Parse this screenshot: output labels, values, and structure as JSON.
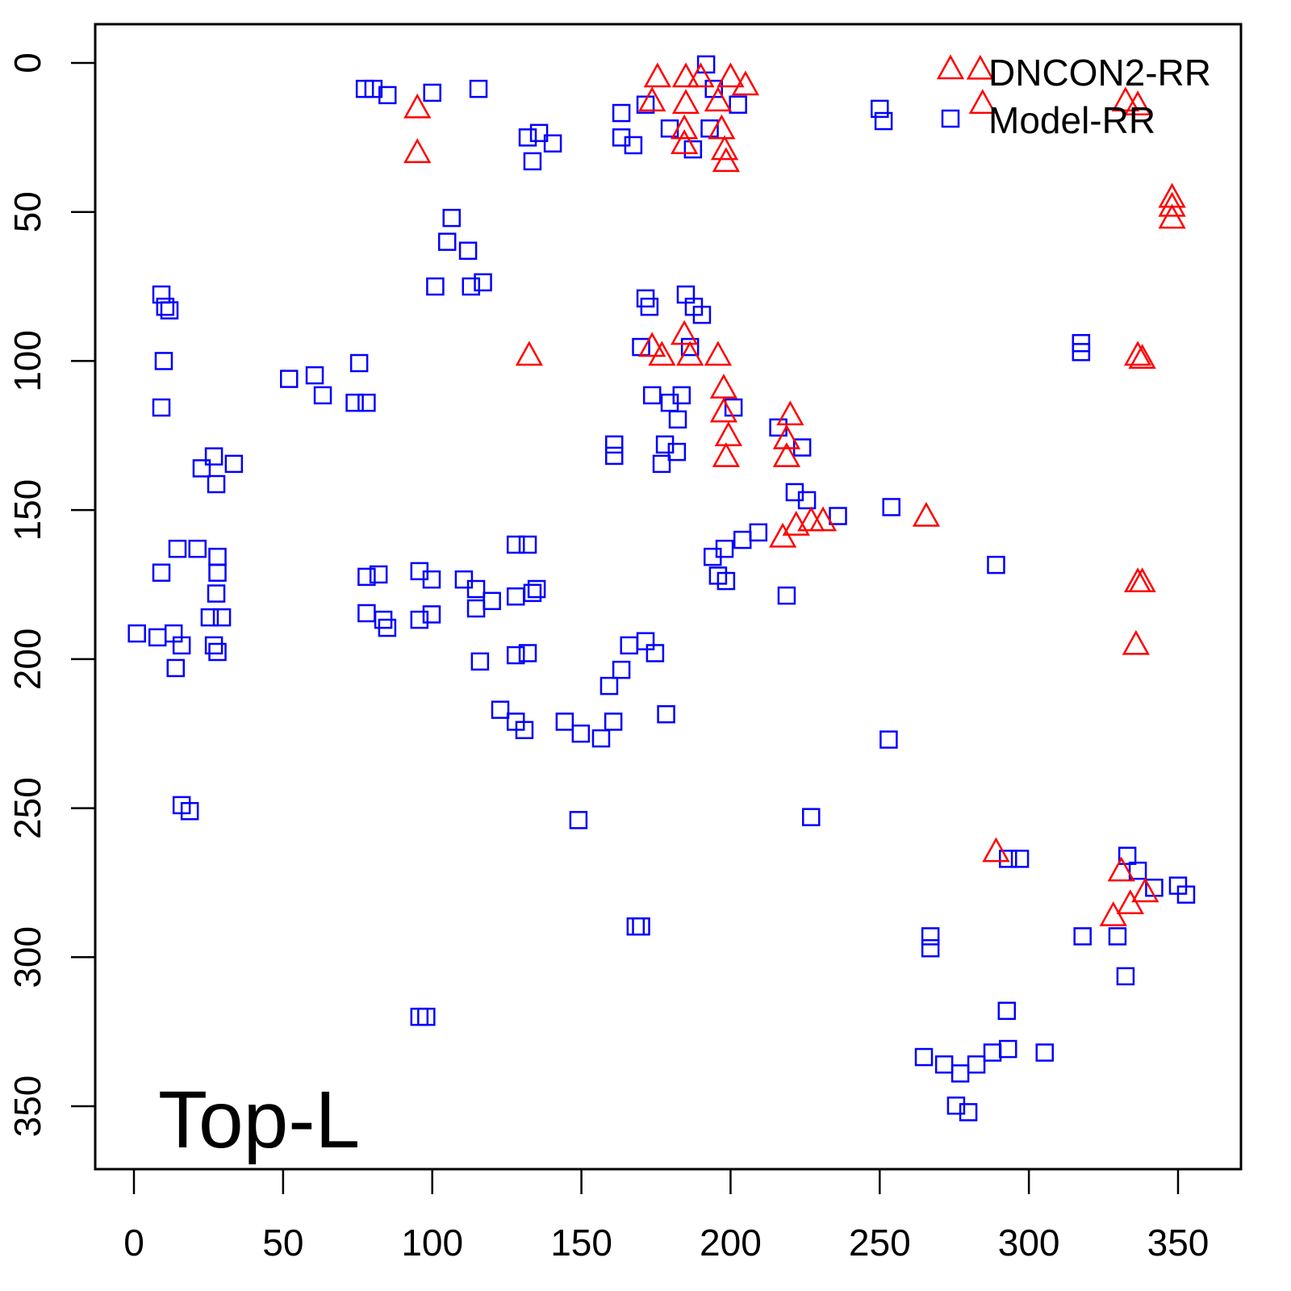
{
  "chart_data": {
    "type": "scatter",
    "title": "",
    "xlabel": "",
    "ylabel": "",
    "xlim": [
      -13,
      371
    ],
    "ylim": [
      371,
      -13
    ],
    "y_inverted": true,
    "xticks": [
      0,
      50,
      100,
      150,
      200,
      250,
      300,
      350
    ],
    "yticks": [
      0,
      50,
      100,
      150,
      200,
      250,
      300,
      350
    ],
    "xtick_labels": [
      "0",
      "50",
      "100",
      "150",
      "200",
      "250",
      "300",
      "350"
    ],
    "ytick_labels": [
      "0",
      "50",
      "100",
      "150",
      "200",
      "250",
      "300",
      "350"
    ],
    "grid": false,
    "legend_position": "top-right",
    "annotation": "Top-L",
    "series": [
      {
        "name": "DNCON2-RR",
        "marker": "triangle",
        "color": "#ff0000",
        "points": [
          [
            95,
            15
          ],
          [
            95,
            30
          ],
          [
            132.5,
            98
          ],
          [
            175.5,
            4.6
          ],
          [
            173.7,
            12.7
          ],
          [
            185,
            4.6
          ],
          [
            185,
            13.5
          ],
          [
            184.5,
            22
          ],
          [
            184.5,
            27
          ],
          [
            190,
            4.6
          ],
          [
            195.8,
            12.7
          ],
          [
            197,
            22
          ],
          [
            198,
            29
          ],
          [
            200,
            4.6
          ],
          [
            205,
            7.3
          ],
          [
            198.5,
            33
          ],
          [
            283.7,
            2
          ],
          [
            284.5,
            13.5
          ],
          [
            332.4,
            12.7
          ],
          [
            336.5,
            14
          ],
          [
            348,
            45
          ],
          [
            348,
            48
          ],
          [
            348,
            52
          ],
          [
            173.7,
            95
          ],
          [
            177,
            98
          ],
          [
            184.5,
            91
          ],
          [
            186.4,
            98
          ],
          [
            195.8,
            98
          ],
          [
            197.7,
            109
          ],
          [
            197.7,
            117
          ],
          [
            199.3,
            125
          ],
          [
            198.5,
            132
          ],
          [
            220,
            118
          ],
          [
            218.8,
            126
          ],
          [
            218.8,
            132
          ],
          [
            336.5,
            98
          ],
          [
            338,
            99
          ],
          [
            217.5,
            159
          ],
          [
            222,
            155
          ],
          [
            227,
            153.5
          ],
          [
            231,
            153.5
          ],
          [
            265.6,
            152
          ],
          [
            336.5,
            174
          ],
          [
            338,
            174
          ],
          [
            335.9,
            195
          ],
          [
            289,
            264.5
          ],
          [
            331,
            271
          ],
          [
            328.3,
            286
          ],
          [
            334,
            282
          ],
          [
            339,
            278
          ]
        ]
      },
      {
        "name": "Model-RR",
        "marker": "square",
        "color": "#0000ff",
        "points": [
          [
            80.3,
            8.7
          ],
          [
            77.4,
            8.7
          ],
          [
            85,
            10.8
          ],
          [
            100,
            10
          ],
          [
            115.5,
            8.7
          ],
          [
            132,
            25
          ],
          [
            135.8,
            23.5
          ],
          [
            140.4,
            27
          ],
          [
            133.6,
            33
          ],
          [
            163.4,
            16.8
          ],
          [
            163.4,
            25
          ],
          [
            167.4,
            27.6
          ],
          [
            171.5,
            14
          ],
          [
            179.6,
            22
          ],
          [
            191.8,
            0.5
          ],
          [
            194.4,
            8.7
          ],
          [
            202.5,
            14
          ],
          [
            193,
            22
          ],
          [
            187.4,
            29
          ],
          [
            250,
            15.4
          ],
          [
            251.3,
            19.5
          ],
          [
            106.5,
            52
          ],
          [
            105,
            60
          ],
          [
            112,
            63
          ],
          [
            101,
            75
          ],
          [
            113,
            75
          ],
          [
            117,
            73.6
          ],
          [
            9.2,
            77.7
          ],
          [
            10.5,
            81.8
          ],
          [
            11.9,
            83
          ],
          [
            10,
            100
          ],
          [
            9.2,
            115.6
          ],
          [
            52,
            106
          ],
          [
            60.6,
            104.8
          ],
          [
            63.3,
            111.5
          ],
          [
            75.5,
            100.7
          ],
          [
            74,
            114
          ],
          [
            78,
            114
          ],
          [
            22.7,
            136
          ],
          [
            26.8,
            132
          ],
          [
            33.5,
            134.5
          ],
          [
            27.6,
            141.3
          ],
          [
            171.5,
            79
          ],
          [
            172.8,
            81.8
          ],
          [
            185,
            77.7
          ],
          [
            187.7,
            81.8
          ],
          [
            190.4,
            84.5
          ],
          [
            170,
            95.3
          ],
          [
            186.4,
            95.3
          ],
          [
            173.7,
            111.5
          ],
          [
            179.6,
            114
          ],
          [
            183.6,
            111.5
          ],
          [
            182.3,
            119.6
          ],
          [
            178,
            128
          ],
          [
            176.9,
            134.5
          ],
          [
            182,
            130.5
          ],
          [
            161,
            128
          ],
          [
            161,
            131.8
          ],
          [
            201,
            115.6
          ],
          [
            216,
            122.3
          ],
          [
            224,
            129
          ],
          [
            221.5,
            144
          ],
          [
            225.6,
            146.7
          ],
          [
            236,
            152
          ],
          [
            194,
            165.7
          ],
          [
            198,
            163
          ],
          [
            204,
            160
          ],
          [
            209.3,
            157.5
          ],
          [
            195.8,
            172
          ],
          [
            198.5,
            173.8
          ],
          [
            218.8,
            178.7
          ],
          [
            253.9,
            149
          ],
          [
            289,
            168.4
          ],
          [
            14.6,
            163
          ],
          [
            21.3,
            163
          ],
          [
            28,
            165.7
          ],
          [
            9.2,
            171
          ],
          [
            28,
            171
          ],
          [
            27.6,
            178
          ],
          [
            25.4,
            186
          ],
          [
            29.5,
            186
          ],
          [
            1,
            191.4
          ],
          [
            7.9,
            192.7
          ],
          [
            13.3,
            191.4
          ],
          [
            16,
            195.4
          ],
          [
            14,
            203
          ],
          [
            26.8,
            195.4
          ],
          [
            28,
            197.6
          ],
          [
            78,
            172.4
          ],
          [
            82,
            171.6
          ],
          [
            78,
            184.6
          ],
          [
            83.6,
            186.8
          ],
          [
            84.9,
            189.5
          ],
          [
            95.7,
            170.5
          ],
          [
            99.8,
            173.3
          ],
          [
            95.7,
            186.8
          ],
          [
            99.8,
            185
          ],
          [
            110.6,
            173.3
          ],
          [
            114.7,
            176.5
          ],
          [
            114.7,
            183
          ],
          [
            120,
            180.5
          ],
          [
            128,
            179
          ],
          [
            133.6,
            177.8
          ],
          [
            135,
            176.5
          ],
          [
            128,
            161.6
          ],
          [
            132,
            161.6
          ],
          [
            116,
            200.8
          ],
          [
            128,
            198.7
          ],
          [
            132,
            198
          ],
          [
            122.8,
            217
          ],
          [
            128,
            221
          ],
          [
            130.9,
            223.8
          ],
          [
            144.4,
            221
          ],
          [
            149.8,
            225
          ],
          [
            156.6,
            226.6
          ],
          [
            160.7,
            221
          ],
          [
            159.3,
            209
          ],
          [
            163.4,
            203.6
          ],
          [
            166,
            195.4
          ],
          [
            171.5,
            194
          ],
          [
            174.7,
            198
          ],
          [
            178.4,
            218.5
          ],
          [
            16,
            249
          ],
          [
            18.7,
            251
          ],
          [
            149,
            254
          ],
          [
            168.2,
            289.7
          ],
          [
            170,
            289.7
          ],
          [
            95.7,
            320
          ],
          [
            98,
            320
          ],
          [
            227,
            253
          ],
          [
            253,
            227
          ],
          [
            267,
            293
          ],
          [
            267,
            297
          ],
          [
            292.6,
            318
          ],
          [
            293,
            267
          ],
          [
            297,
            267
          ],
          [
            317.5,
            94
          ],
          [
            317.5,
            97
          ],
          [
            318,
            293
          ],
          [
            329.7,
            293
          ],
          [
            332.4,
            306.4
          ],
          [
            333,
            266
          ],
          [
            336.5,
            271
          ],
          [
            342,
            276.7
          ],
          [
            350,
            276
          ],
          [
            352.7,
            279
          ],
          [
            264.8,
            333.5
          ],
          [
            271.6,
            336
          ],
          [
            277,
            339
          ],
          [
            282.4,
            336
          ],
          [
            287.8,
            332
          ],
          [
            293,
            330.8
          ],
          [
            305.3,
            332
          ],
          [
            275.6,
            349.8
          ],
          [
            279.7,
            352
          ]
        ]
      }
    ]
  }
}
